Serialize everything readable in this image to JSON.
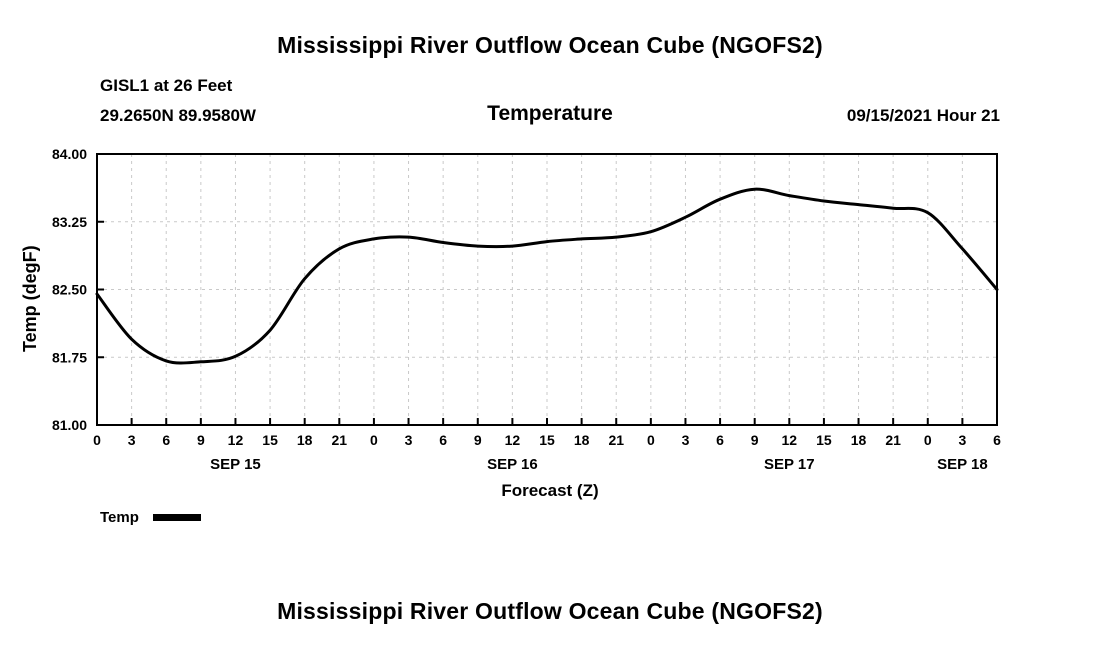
{
  "page": {
    "top_title": "Mississippi River Outflow Ocean Cube (NGOFS2)",
    "bottom_title": "Mississippi River Outflow Ocean Cube (NGOFS2)"
  },
  "header": {
    "station": "GISL1 at 26 Feet",
    "coords": "29.2650N  89.9580W",
    "plot_title": "Temperature",
    "datetime": "09/15/2021 Hour 21"
  },
  "legend": {
    "label": "Temp"
  },
  "chart_data": {
    "type": "line",
    "title": "Temperature",
    "xlabel": "Forecast (Z)",
    "ylabel": "Temp (degF)",
    "ylim": [
      81.0,
      84.0
    ],
    "xlim": [
      0,
      78
    ],
    "yticks": [
      81.0,
      81.75,
      82.5,
      83.25,
      84.0
    ],
    "ytick_labels": [
      "81.00",
      "81.75",
      "82.50",
      "83.25",
      "84.00"
    ],
    "grid_y_values": [
      81.75,
      82.5,
      83.25
    ],
    "grid": "dashed",
    "legend_position": "bottom-left",
    "x_hours": [
      0,
      3,
      6,
      9,
      12,
      15,
      18,
      21,
      24,
      27,
      30,
      33,
      36,
      39,
      42,
      45,
      48,
      51,
      54,
      57,
      60,
      63,
      66,
      69,
      72,
      75,
      78
    ],
    "xtick_labels": [
      "0",
      "3",
      "6",
      "9",
      "12",
      "15",
      "18",
      "21",
      "0",
      "3",
      "6",
      "9",
      "12",
      "15",
      "18",
      "21",
      "0",
      "3",
      "6",
      "9",
      "12",
      "15",
      "18",
      "21",
      "0",
      "3",
      "6"
    ],
    "day_labels": [
      {
        "label": "SEP 15",
        "center_hour": 12
      },
      {
        "label": "SEP 16",
        "center_hour": 36
      },
      {
        "label": "SEP 17",
        "center_hour": 60
      },
      {
        "label": "SEP 18",
        "center_hour": 75
      }
    ],
    "series": [
      {
        "name": "Temp",
        "color": "#000000",
        "values": [
          82.45,
          81.95,
          81.71,
          81.7,
          81.76,
          82.05,
          82.62,
          82.95,
          83.06,
          83.08,
          83.02,
          82.98,
          82.98,
          83.03,
          83.06,
          83.08,
          83.14,
          83.3,
          83.5,
          83.61,
          83.54,
          83.48,
          83.44,
          83.4,
          83.35,
          82.95,
          82.5
        ]
      }
    ]
  }
}
